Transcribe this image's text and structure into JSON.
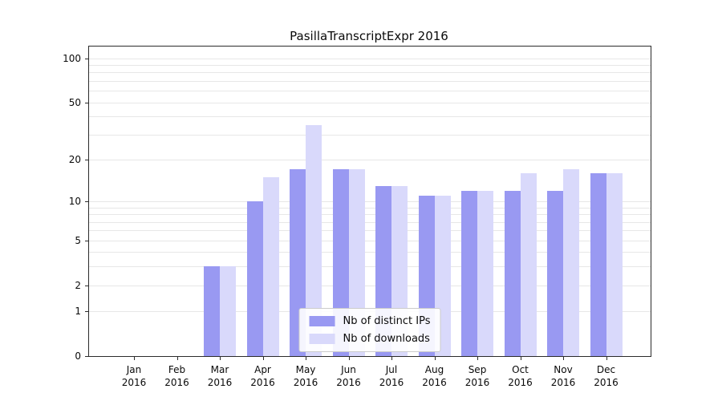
{
  "chart_data": {
    "type": "bar",
    "title": "PasillaTranscriptExpr 2016",
    "categories": [
      "Jan",
      "Feb",
      "Mar",
      "Apr",
      "May",
      "Jun",
      "Jul",
      "Aug",
      "Sep",
      "Oct",
      "Nov",
      "Dec"
    ],
    "year_label": "2016",
    "series": [
      {
        "name": "Nb of distinct IPs",
        "color": "#9999f2",
        "values": [
          0,
          0,
          3,
          10,
          17,
          17,
          13,
          11,
          12,
          12,
          12,
          16
        ]
      },
      {
        "name": "Nb of downloads",
        "color": "#d9d9fb",
        "values": [
          0,
          0,
          3,
          15,
          35,
          17,
          13,
          11,
          12,
          16,
          17,
          16
        ]
      }
    ],
    "y_ticks": [
      0,
      1,
      2,
      5,
      10,
      20,
      50,
      100
    ],
    "grid_values": [
      1,
      2,
      3,
      4,
      5,
      6,
      7,
      8,
      9,
      10,
      20,
      30,
      40,
      50,
      60,
      70,
      80,
      90,
      100
    ],
    "y_scale": "log10(1+x)",
    "ylim": [
      0,
      120
    ],
    "grid": true,
    "legend_position": "bottom-center"
  }
}
